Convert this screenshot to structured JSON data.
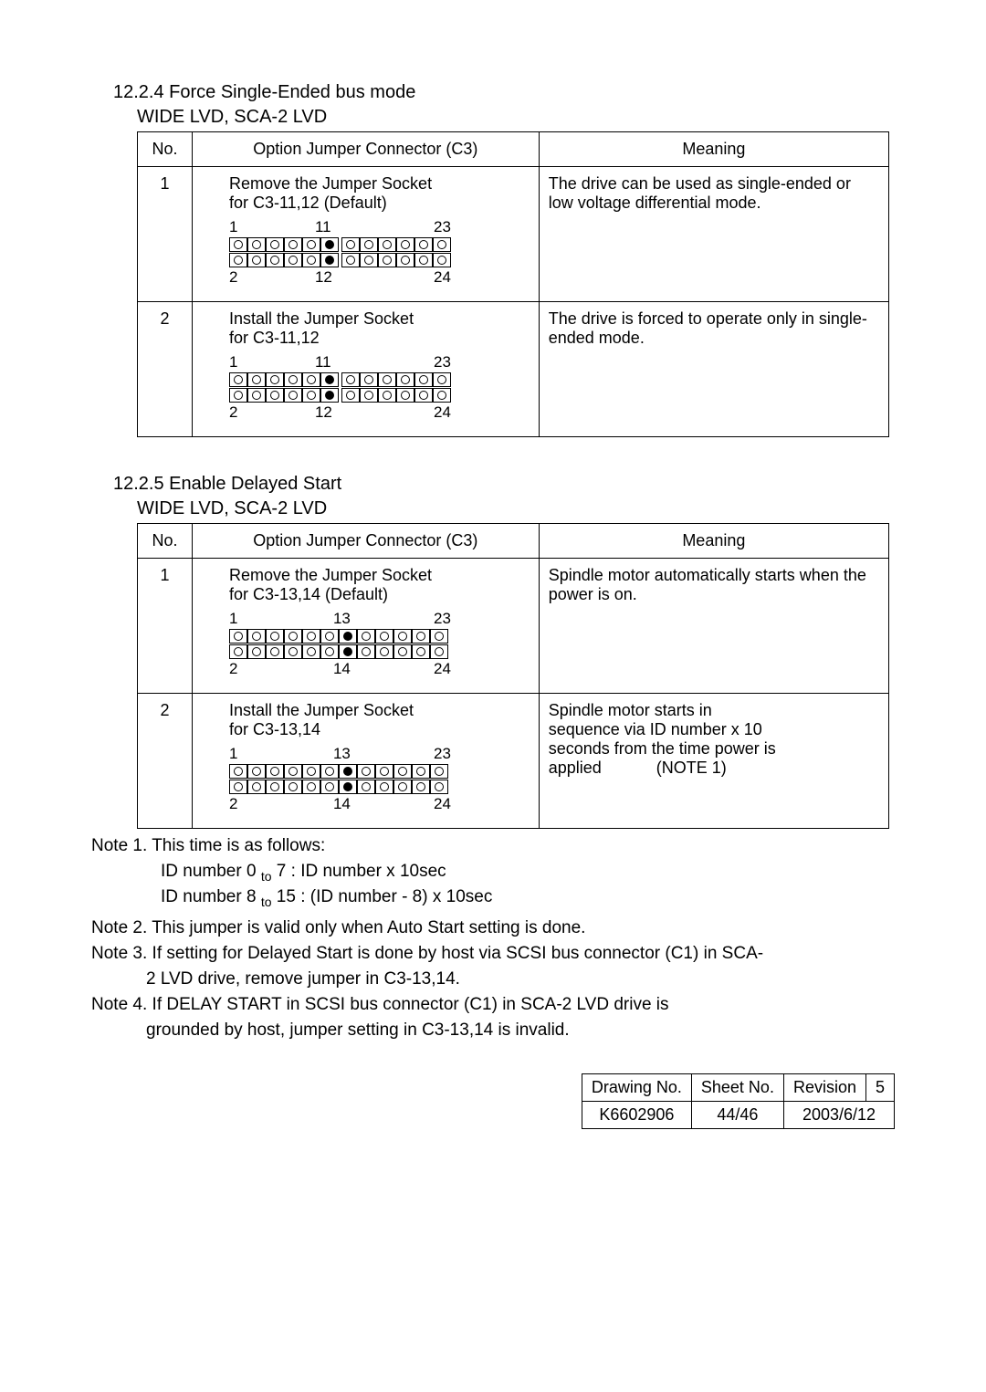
{
  "section1": {
    "heading": "12.2.4  Force Single-Ended bus mode",
    "subheading": "WIDE LVD, SCA-2 LVD",
    "headers": {
      "no": "No.",
      "option": "Option Jumper Connector (C3)",
      "meaning": "Meaning"
    },
    "rows": [
      {
        "no": "1",
        "instruction_line1": "Remove the Jumper Socket",
        "instruction_line2": "for C3-11,12 (Default)",
        "top_labels": {
          "start": "1",
          "mid": "11",
          "end": "23"
        },
        "bottom_labels": {
          "start": "2",
          "mid": "12",
          "end": "24"
        },
        "filled_positions": [
          6
        ],
        "meaning": "The drive can be used as single-ended or low voltage differential mode."
      },
      {
        "no": "2",
        "instruction_line1": "Install the Jumper Socket",
        "instruction_line2": "for C3-11,12",
        "top_labels": {
          "start": "1",
          "mid": "11",
          "end": "23"
        },
        "bottom_labels": {
          "start": "2",
          "mid": "12",
          "end": "24"
        },
        "filled_positions": [
          6
        ],
        "meaning": "The drive is forced to operate only in single-ended mode."
      }
    ]
  },
  "section2": {
    "heading": "12.2.5  Enable Delayed Start",
    "subheading": "WIDE LVD, SCA-2 LVD",
    "headers": {
      "no": "No.",
      "option": "Option Jumper Connector (C3)",
      "meaning": "Meaning"
    },
    "rows": [
      {
        "no": "1",
        "instruction_line1": "Remove the Jumper Socket",
        "instruction_line2": "for C3-13,14 (Default)",
        "top_labels": {
          "start": "1",
          "mid": "13",
          "end": "23"
        },
        "bottom_labels": {
          "start": "2",
          "mid": "14",
          "end": "24"
        },
        "filled_positions": [
          7
        ],
        "meaning": "Spindle motor automatically starts when the power is on."
      },
      {
        "no": "2",
        "instruction_line1": "Install the Jumper Socket",
        "instruction_line2": "for C3-13,14",
        "top_labels": {
          "start": "1",
          "mid": "13",
          "end": "23"
        },
        "bottom_labels": {
          "start": "2",
          "mid": "14",
          "end": "24"
        },
        "filled_positions": [
          7
        ],
        "meaning_lines": [
          "Spindle motor starts in",
          "sequence via ID number x 10",
          "seconds from the time power is",
          "applied"
        ],
        "note_ref": "(NOTE 1)"
      }
    ]
  },
  "notes": {
    "note1_intro": "Note 1. This time is as follows:",
    "note1_line1_a": "ID number 0 ",
    "note1_line1_b": "to",
    "note1_line1_c": " 7 : ID number x 10sec",
    "note1_line2_a": "ID number 8 ",
    "note1_line2_b": "to",
    "note1_line2_c": " 15 : (ID number - 8) x 10sec",
    "note2": "Note 2. This jumper is valid only when Auto Start setting is done.",
    "note3_a": "Note 3. If setting for Delayed Start is done by host via SCSI bus connector (C1) in SCA-",
    "note3_b": "2 LVD drive, remove jumper in C3-13,14.",
    "note4_a": "Note 4. If DELAY START in SCSI bus connector (C1) in SCA-2 LVD drive is",
    "note4_b": "grounded by host, jumper setting in C3-13,14 is invalid."
  },
  "footer": {
    "labels": {
      "drawing": "Drawing No.",
      "sheet": "Sheet No.",
      "revision": "Revision",
      "rev_num": "5"
    },
    "values": {
      "drawing": "K6602906",
      "sheet": "44/46",
      "date": "2003/6/12"
    }
  },
  "diagram_config": {
    "pin_count": 12,
    "gap_after_index": 6
  }
}
